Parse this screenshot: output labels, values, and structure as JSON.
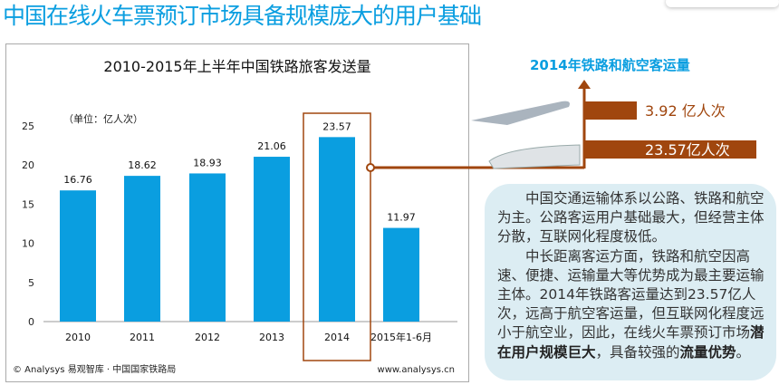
{
  "page_title": "中国在线火车票预订市场具备规模庞大的用户基础",
  "chart_data": [
    {
      "type": "bar",
      "title": "2010-2015年上半年中国铁路旅客发送量",
      "unit_note": "（单位：亿人次）",
      "categories": [
        "2010",
        "2011",
        "2012",
        "2013",
        "2014",
        "2015年1-6月"
      ],
      "values": [
        16.76,
        18.62,
        18.93,
        21.06,
        23.57,
        11.97
      ],
      "ylim": [
        0,
        25
      ],
      "yticks": [
        0,
        5,
        10,
        15,
        20,
        25
      ],
      "highlight": "2014",
      "bar_color": "#0a9ee0",
      "footer_left": "© Analysys 易观智库 · 中国国家铁路局",
      "footer_right": "www.analysys.cn"
    },
    {
      "type": "bar",
      "title": "2014年铁路和航空客运量",
      "categories": [
        "航空",
        "铁路"
      ],
      "values": [
        3.92,
        23.57
      ],
      "labels": [
        "3.92  亿人次",
        "23.57亿人次"
      ],
      "bar_color": "#a0460e"
    }
  ],
  "note": {
    "p1": "中国交通运输体系以公路、铁路和航空为主。公路客运用户基础最大，但经营主体分散，互联网化程度极低。",
    "p2a": "中长距离客运方面，铁路和航空因高速、便捷、运输量大等优势成为最主要运输主体。2014年铁路客运量达到23.57亿人次，远高于航空客运量，但互联网化程度远小于航空业，因此，在线火车票预订市场",
    "p2b": "潜在用户规模巨大",
    "p2c": "，具备较强的",
    "p2d": "流量优势",
    "p2e": "。"
  }
}
